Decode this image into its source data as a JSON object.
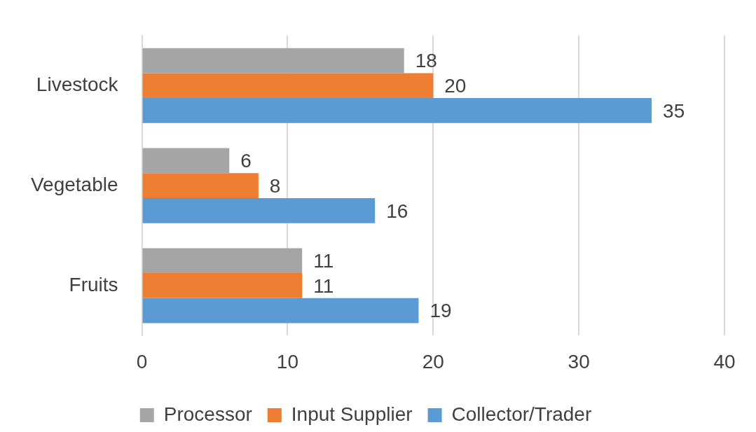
{
  "chart_data": {
    "type": "bar",
    "orientation": "horizontal",
    "categories": [
      "Livestock",
      "Vegetable",
      "Fruits"
    ],
    "series": [
      {
        "name": "Processor",
        "color": "#a5a5a5",
        "values": [
          18,
          6,
          11
        ]
      },
      {
        "name": "Input Supplier",
        "color": "#ed7d31",
        "values": [
          20,
          8,
          11
        ]
      },
      {
        "name": "Collector/Trader",
        "color": "#5b9bd5",
        "values": [
          35,
          16,
          19
        ]
      }
    ],
    "xlim": [
      0,
      40
    ],
    "xticks": [
      0,
      10,
      20,
      30,
      40
    ],
    "grid": "x",
    "legend": "bottom",
    "data_labels": true
  }
}
